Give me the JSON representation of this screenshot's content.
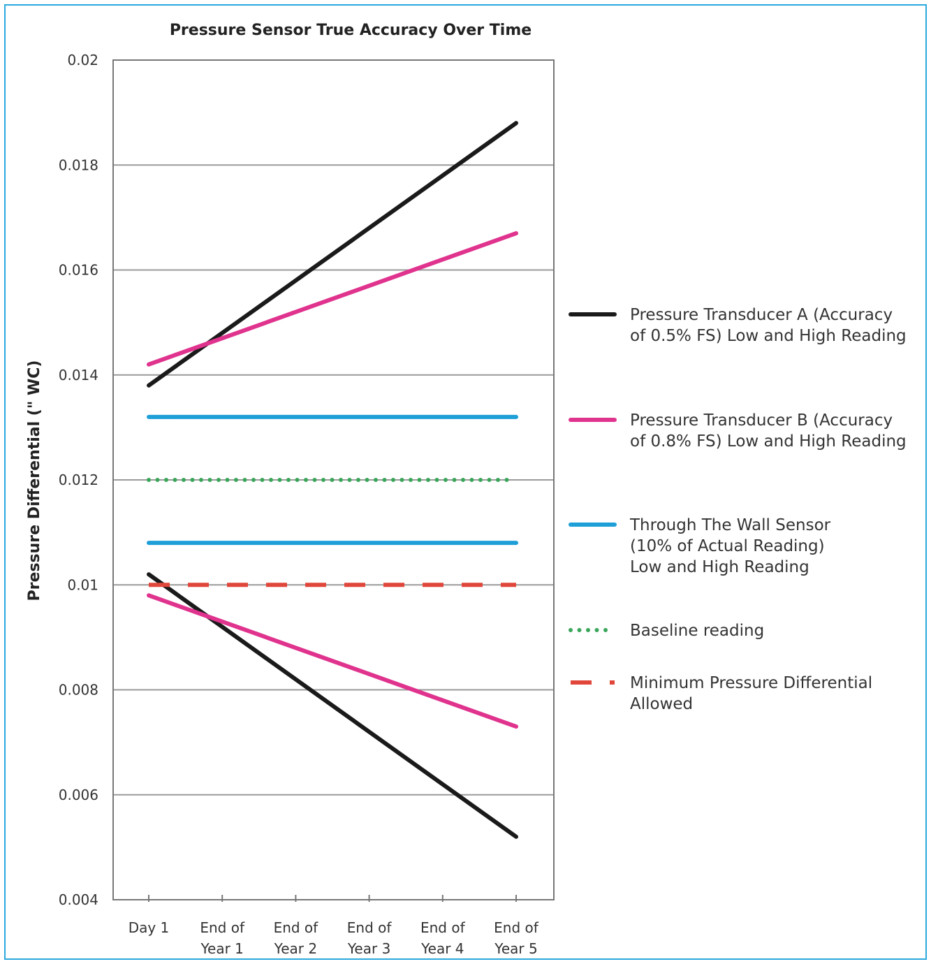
{
  "chart_data": {
    "type": "line",
    "title": "Pressure Sensor True Accuracy Over Time",
    "xlabel": "",
    "ylabel": "Pressure Differential (\" WC)",
    "categories": [
      [
        "Day 1"
      ],
      [
        "End of",
        "Year 1"
      ],
      [
        "End of",
        "Year 2"
      ],
      [
        "End of",
        "Year 3"
      ],
      [
        "End of",
        "Year 4"
      ],
      [
        "End of",
        "Year 5"
      ]
    ],
    "ylim": [
      0.004,
      0.02
    ],
    "yticks": [
      "0.004",
      "0.006",
      "0.008",
      "0.01",
      "0.012",
      "0.014",
      "0.016",
      "0.018",
      "0.02"
    ],
    "grid": true,
    "legend_position": "right",
    "series": [
      {
        "legend_group": "transducer_a",
        "style": "solid",
        "color": "#1a1a1a",
        "points": [
          [
            0,
            0.0138
          ],
          [
            5,
            0.0188
          ]
        ]
      },
      {
        "legend_group": "transducer_a",
        "style": "solid",
        "color": "#1a1a1a",
        "points": [
          [
            0,
            0.0102
          ],
          [
            5,
            0.0052
          ]
        ]
      },
      {
        "legend_group": "transducer_b",
        "style": "solid",
        "color": "#e0338e",
        "points": [
          [
            0,
            0.0142
          ],
          [
            5,
            0.0167
          ]
        ]
      },
      {
        "legend_group": "transducer_b",
        "style": "solid",
        "color": "#e0338e",
        "points": [
          [
            0,
            0.0098
          ],
          [
            5,
            0.0073
          ]
        ]
      },
      {
        "legend_group": "wall_sensor",
        "style": "solid",
        "color": "#1f9fd8",
        "points": [
          [
            0,
            0.0132
          ],
          [
            5,
            0.0132
          ]
        ]
      },
      {
        "legend_group": "wall_sensor",
        "style": "solid",
        "color": "#1f9fd8",
        "points": [
          [
            0,
            0.0108
          ],
          [
            5,
            0.0108
          ]
        ]
      },
      {
        "legend_group": "baseline",
        "style": "dotted",
        "color": "#3aa65a",
        "points": [
          [
            0,
            0.012
          ],
          [
            4.9,
            0.012
          ]
        ]
      },
      {
        "legend_group": "minimum",
        "style": "dashed",
        "color": "#e0463a",
        "points": [
          [
            0,
            0.01
          ],
          [
            5,
            0.01
          ]
        ]
      }
    ],
    "legend": [
      {
        "key": "transducer_a",
        "style": "solid",
        "color": "#1a1a1a",
        "lines": [
          "Pressure Transducer A (Accuracy",
          "of 0.5% FS) Low and High Reading"
        ]
      },
      {
        "key": "transducer_b",
        "style": "solid",
        "color": "#e0338e",
        "lines": [
          "Pressure Transducer B (Accuracy",
          "of 0.8% FS) Low and High Reading"
        ]
      },
      {
        "key": "wall_sensor",
        "style": "solid",
        "color": "#1f9fd8",
        "lines": [
          "Through The Wall Sensor",
          "(10% of Actual Reading)",
          "Low and High Reading"
        ]
      },
      {
        "key": "baseline",
        "style": "dotted",
        "color": "#3aa65a",
        "lines": [
          "Baseline reading"
        ]
      },
      {
        "key": "minimum",
        "style": "dashed",
        "color": "#e0463a",
        "lines": [
          "Minimum Pressure Differential",
          "Allowed"
        ]
      }
    ]
  }
}
